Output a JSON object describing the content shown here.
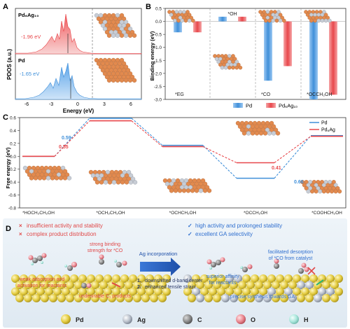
{
  "panelA": {
    "letter": "A",
    "ylabel": "PDOS (a.u.)",
    "xlabel": "Energy (eV)",
    "xticks": [
      "-6",
      "-3",
      "0",
      "3",
      "6"
    ],
    "top": {
      "label": "Pd₆Ag₁₀",
      "dband": "-1.96 eV",
      "color": "#e8474b"
    },
    "bottom": {
      "label": "Pd",
      "dband": "-1.65 eV",
      "color": "#3f8fd9"
    }
  },
  "panelB": {
    "letter": "B",
    "ylabel": "Binding energy (eV)",
    "yticks": [
      "0.5",
      "0.0",
      "-0.5",
      "-1.0",
      "-1.5",
      "-2.0",
      "-2.5",
      "-3.0"
    ],
    "legend": [
      {
        "name": "Pd",
        "color": "#3f8fd9"
      },
      {
        "name": "Pd₆Ag₁₀",
        "color": "#e8474b"
      }
    ]
  },
  "panelC": {
    "letter": "C",
    "ylabel": "Free energy (eV)",
    "yticks": [
      "0.6",
      "0.4",
      "0.2",
      "0.0",
      "-0.2",
      "-0.4",
      "-0.6",
      "-0.8"
    ],
    "legend": [
      {
        "name": "Pd",
        "color": "#3f8fd9"
      },
      {
        "name": "Pd₆Ag",
        "color": "#e8474b"
      }
    ]
  },
  "panelD": {
    "letter": "D",
    "left_header": [
      "insufficient activity and stability",
      "complex product distribution"
    ],
    "right_header": [
      "high activity and prolonged stability",
      "excellent GA selectivity"
    ],
    "arrow_label": "Ag incorporation",
    "step1": "1.",
    "step1_text": "downshifted d-band center",
    "step2": "2.",
    "step2_text": "enhanced tensile strain",
    "left_notes": {
      "binding": [
        "strong binding",
        "strength for *CO"
      ],
      "adsorption": [
        "weak adsorption and",
        "activation for reactants"
      ],
      "byproducts": "undesirable C₁ products"
    },
    "right_notes": {
      "desorption": [
        "facilitated desorption",
        "of *CO from catalyst"
      ],
      "affinity": [
        "superior affinity",
        "for reactants"
      ],
      "synthesis": "precise synthesis towards GA"
    },
    "legend": [
      {
        "symbol": "Pd",
        "color": "#e8d24a"
      },
      {
        "symbol": "Ag",
        "color": "#b5bcc7"
      },
      {
        "symbol": "C",
        "color": "#8a8a8a"
      },
      {
        "symbol": "O",
        "color": "#e9858c"
      },
      {
        "symbol": "H",
        "color": "#a9e6dc"
      }
    ]
  },
  "chart_data": [
    {
      "type": "area",
      "panel": "A",
      "xlabel": "Energy (eV)",
      "ylabel": "PDOS (a.u.)",
      "xlim": [
        -7,
        6
      ],
      "series": [
        {
          "name": "Pd₆Ag₁₀",
          "dband_center": -1.96
        },
        {
          "name": "Pd",
          "dband_center": -1.65
        }
      ]
    },
    {
      "type": "bar",
      "panel": "B",
      "ylabel": "Binding energy (eV)",
      "ylim": [
        -3.0,
        0.5
      ],
      "categories": [
        "*EG",
        "*OH",
        "*CO",
        "*OCCH₂OH"
      ],
      "series": [
        {
          "name": "Pd",
          "values": [
            -0.42,
            0.18,
            -2.28,
            -3.0
          ]
        },
        {
          "name": "Pd₆Ag₁₀",
          "values": [
            -0.42,
            0.18,
            -1.72,
            -2.82
          ]
        }
      ]
    },
    {
      "type": "line",
      "panel": "C",
      "ylabel": "Free energy (eV)",
      "ylim": [
        -0.8,
        0.6
      ],
      "categories": [
        "*HOCH₂CH₂OH",
        "*OCH₂CH₂OH",
        "*OCHCH₂OH",
        "*OCCH₂OH",
        "*COOHCH₂OH"
      ],
      "series": [
        {
          "name": "Pd",
          "values": [
            0.0,
            0.59,
            0.17,
            -0.34,
            0.32
          ]
        },
        {
          "name": "Pd₆Ag",
          "values": [
            0.0,
            0.55,
            0.15,
            -0.1,
            0.31
          ]
        }
      ],
      "annotations": [
        "0.59",
        "0.55",
        "0.41",
        "0.66"
      ]
    }
  ]
}
